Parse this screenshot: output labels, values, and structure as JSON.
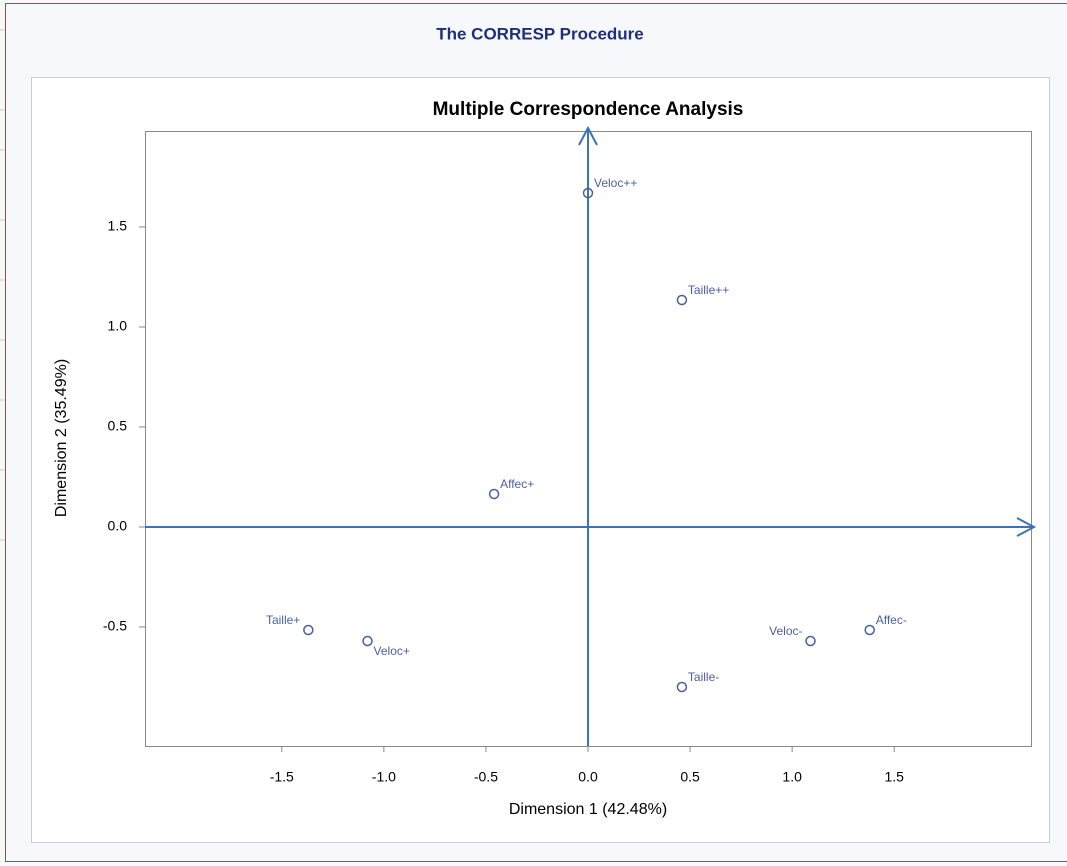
{
  "header": {
    "title": "The CORRESP Procedure"
  },
  "chart_data": {
    "type": "scatter",
    "title": "Multiple Correspondence Analysis",
    "x_label": "Dimension 1 (42.48%)",
    "y_label": "Dimension 2 (35.49%)",
    "color": "#4a5fa3",
    "axis_color": "#3b73b9",
    "labels": [
      "Veloc++",
      "Taille++",
      "Affec+",
      "Taille+",
      "Veloc+",
      "Veloc-",
      "Affec-",
      "Taille-"
    ],
    "x": [
      0.0,
      0.46,
      -0.46,
      -1.37,
      -1.08,
      1.09,
      1.38,
      0.46
    ],
    "values": [
      1.67,
      1.135,
      0.165,
      -0.515,
      -0.57,
      -0.57,
      -0.515,
      -0.8
    ],
    "xlim": [
      -2.17,
      2.17
    ],
    "ylim": [
      -1.095,
      1.98
    ],
    "xticks": [
      -1.5,
      {
        "value": -1,
        "label": "-1.0"
      },
      -0.5,
      {
        "value": 0,
        "label": "0.0"
      },
      0.5,
      {
        "value": 1,
        "label": "1.0"
      },
      1.5
    ],
    "yticks": [
      -0.5,
      {
        "value": 0,
        "label": "0.0"
      },
      0.5,
      {
        "value": 1,
        "label": "1.0"
      },
      1.5
    ]
  }
}
